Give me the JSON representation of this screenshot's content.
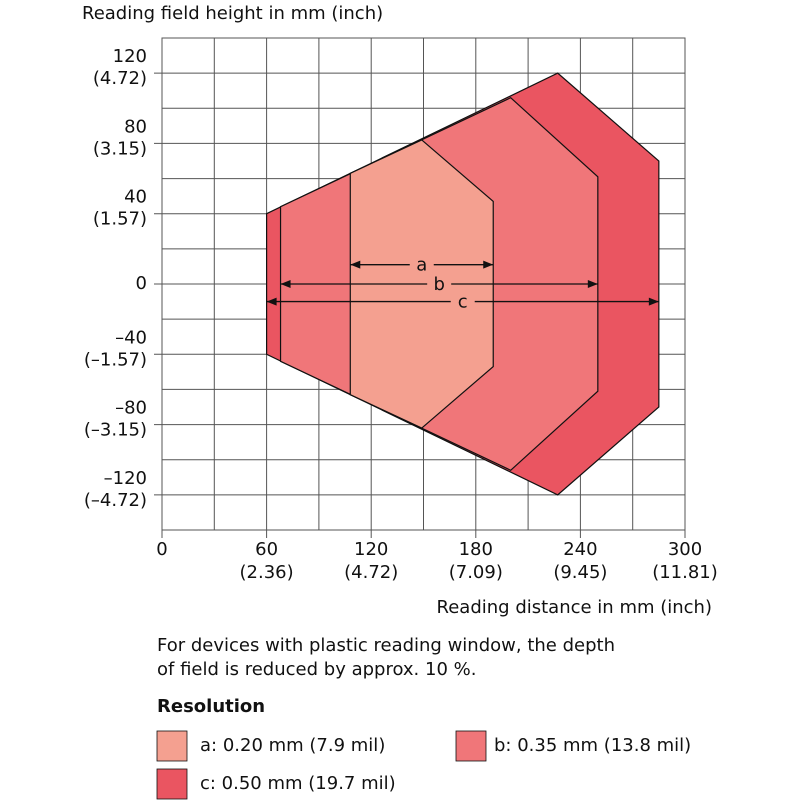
{
  "chart_data": {
    "type": "polygon",
    "y_title": "Reading field height in mm (inch)",
    "x_title": "Reading distance in mm (inch)",
    "note": "For devices with plastic reading window, the depth of field is reduced by approx. 10 %.",
    "legend_title": "Resolution",
    "xlim": [
      0,
      300
    ],
    "ylim": [
      -140,
      140
    ],
    "xticks": [
      0,
      60,
      120,
      180,
      240,
      300
    ],
    "xtick_inch_labels": [
      null,
      "(2.36)",
      "(4.72)",
      "(7.09)",
      "(9.45)",
      "(11.81)"
    ],
    "yticks": [
      {
        "value": -120,
        "label": "–120"
      },
      {
        "value": -80,
        "label": "–80"
      },
      {
        "value": -40,
        "label": "–40"
      },
      0,
      40,
      80,
      120
    ],
    "ytick_inch_labels": [
      "(–4.72)",
      "(–3.15)",
      "(–1.57)",
      null,
      "(1.57)",
      "(3.15)",
      "(4.72)"
    ],
    "grid": true,
    "series": [
      {
        "name": "c: 0.50 mm (19.7 mil)",
        "label": "c",
        "color": "#ea5561",
        "x": [
          60,
          227,
          285,
          285,
          227,
          60
        ],
        "values": [
          40,
          120,
          70,
          -70,
          -120,
          -40
        ],
        "arrow_y": -10
      },
      {
        "name": "b: 0.35 mm (13.8 mil)",
        "label": "b",
        "color": "#f07679",
        "x": [
          68,
          200,
          250,
          250,
          200,
          68
        ],
        "values": [
          44,
          106,
          61,
          -61,
          -106,
          -44
        ],
        "arrow_y": 0
      },
      {
        "name": "a: 0.20 mm (7.9 mil)",
        "label": "a",
        "color": "#f4a090",
        "x": [
          108,
          149,
          190,
          190,
          149,
          108
        ],
        "values": [
          63,
          82,
          47,
          -47,
          -82,
          -63
        ],
        "arrow_y": 11
      }
    ]
  }
}
